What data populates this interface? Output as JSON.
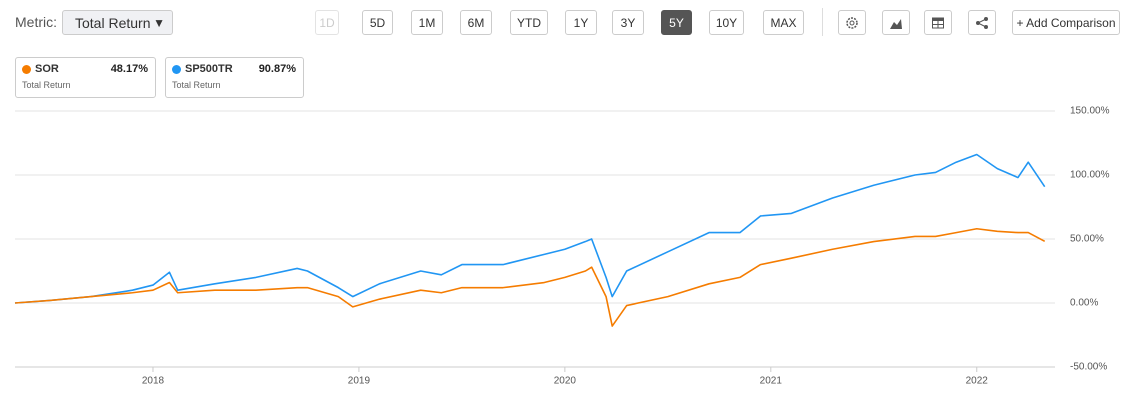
{
  "toolbar": {
    "metric_label": "Metric:",
    "metric_value": "Total Return",
    "ranges": [
      "1D",
      "5D",
      "1M",
      "6M",
      "YTD",
      "1Y",
      "3Y",
      "5Y",
      "10Y",
      "MAX"
    ],
    "active_range": "5Y",
    "disabled_range": "1D",
    "add_comparison": "+ Add Comparison"
  },
  "legend": [
    {
      "name": "SOR",
      "value": "48.17%",
      "metric": "Total Return"
    },
    {
      "name": "SP500TR",
      "value": "90.87%",
      "metric": "Total Return"
    }
  ],
  "chart_data": {
    "type": "line",
    "x": [
      2017.33,
      2017.5,
      2017.7,
      2017.9,
      2018.0,
      2018.08,
      2018.12,
      2018.3,
      2018.5,
      2018.7,
      2018.75,
      2018.9,
      2018.97,
      2019.1,
      2019.3,
      2019.4,
      2019.5,
      2019.7,
      2019.9,
      2020.0,
      2020.1,
      2020.13,
      2020.2,
      2020.23,
      2020.3,
      2020.5,
      2020.7,
      2020.85,
      2020.95,
      2021.1,
      2021.3,
      2021.5,
      2021.7,
      2021.8,
      2021.9,
      2022.0,
      2022.1,
      2022.2,
      2022.25,
      2022.33
    ],
    "series": [
      {
        "name": "SP500TR",
        "color": "#2196f3",
        "values": [
          0,
          2,
          5,
          10,
          14,
          24,
          10,
          15,
          20,
          27,
          25,
          12,
          5,
          15,
          25,
          22,
          30,
          30,
          38,
          42,
          48,
          50,
          20,
          5,
          25,
          40,
          55,
          55,
          68,
          70,
          82,
          92,
          100,
          102,
          110,
          116,
          105,
          98,
          110,
          90.87
        ]
      },
      {
        "name": "SOR",
        "color": "#f57c00",
        "values": [
          0,
          2,
          5,
          8,
          10,
          16,
          8,
          10,
          10,
          12,
          12,
          5,
          -3,
          3,
          10,
          8,
          12,
          12,
          16,
          20,
          25,
          28,
          5,
          -18,
          -2,
          5,
          15,
          20,
          30,
          35,
          42,
          48,
          52,
          52,
          55,
          58,
          56,
          55,
          55,
          48.17
        ]
      }
    ],
    "xlim": [
      2017.33,
      2022.38
    ],
    "xticks": [
      2018,
      2019,
      2020,
      2021,
      2022
    ],
    "ylim": [
      -50,
      150
    ],
    "yticks": [
      {
        "value": -50,
        "label": "-50.00%"
      },
      {
        "value": 0,
        "label": "0.00%"
      },
      {
        "value": 50,
        "label": "50.00%"
      },
      {
        "value": 100,
        "label": "100.00%"
      },
      {
        "value": 150,
        "label": "150.00%"
      }
    ],
    "grid": true
  }
}
